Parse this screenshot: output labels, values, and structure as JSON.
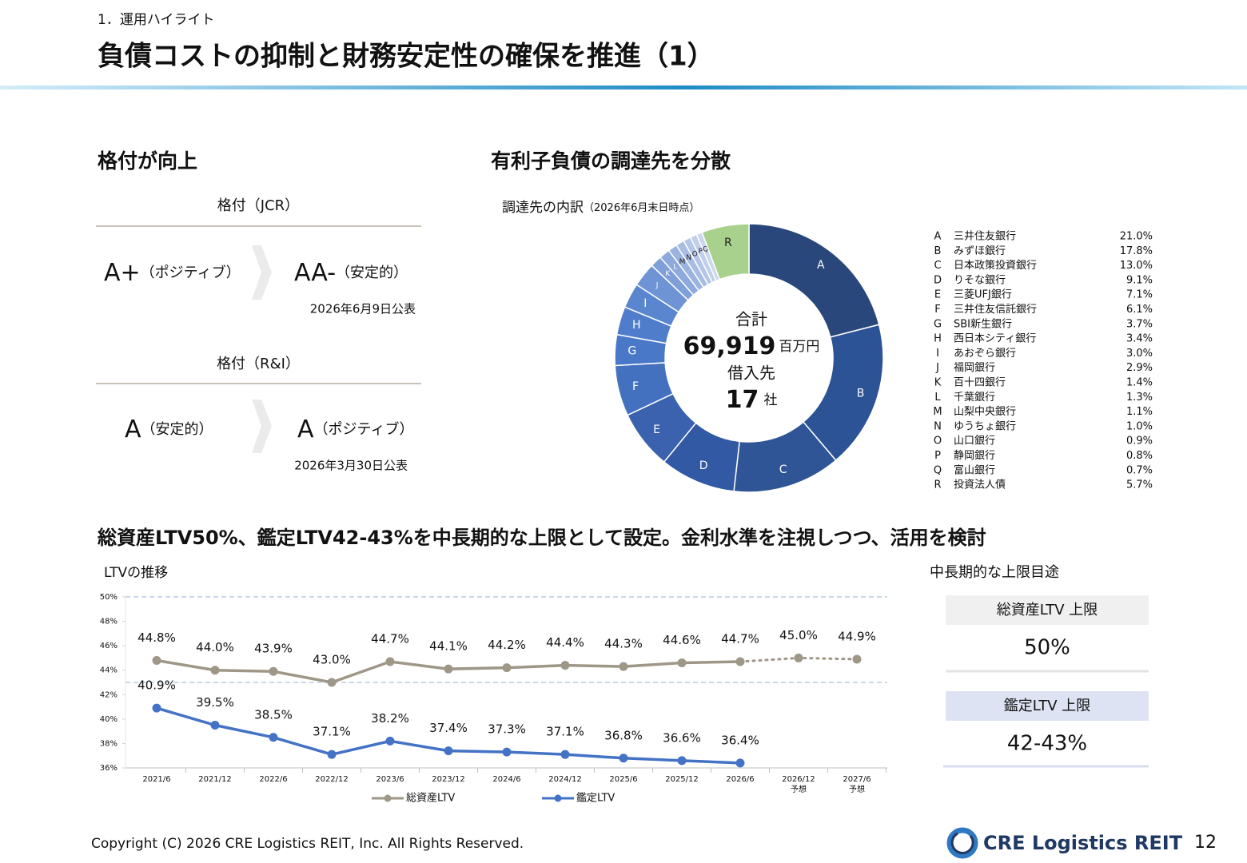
{
  "header": {
    "section": "1．運用ハイライト",
    "title": "負債コストの抑制と財務安定性の確保を推進（1）"
  },
  "rating": {
    "heading": "格付が向上",
    "agencies": [
      {
        "label": "格付（JCR）",
        "before": "A+",
        "before_note": "（ポジティブ）",
        "after": "AA-",
        "after_note": "（安定的）",
        "date": "2026年6月9日公表"
      },
      {
        "label": "格付（R&I）",
        "before": "A",
        "before_note": "（安定的）",
        "after": "A",
        "after_note": "（ポジティブ）",
        "date": "2026年3月30日公表"
      }
    ]
  },
  "chart_data": [
    {
      "type": "donut",
      "heading": "有利子負債の調達先を分散",
      "title": "調達先の内訳",
      "subtitle": "（2026年6月末日時点）",
      "center": {
        "total_label": "合計",
        "total": "69,919",
        "total_unit": "百万円",
        "count_label": "借入先",
        "count": 17,
        "count_unit": "社"
      },
      "categories": [
        "A",
        "B",
        "C",
        "D",
        "E",
        "F",
        "G",
        "H",
        "I",
        "J",
        "K",
        "L",
        "M",
        "N",
        "O",
        "P",
        "Q",
        "R"
      ],
      "names": [
        "三井住友銀行",
        "みずほ銀行",
        "日本政策投資銀行",
        "りそな銀行",
        "三菱UFJ銀行",
        "三井住友信託銀行",
        "SBI新生銀行",
        "西日本シティ銀行",
        "あおぞら銀行",
        "福岡銀行",
        "百十四銀行",
        "千葉銀行",
        "山梨中央銀行",
        "ゆうちょ銀行",
        "山口銀行",
        "静岡銀行",
        "富山銀行",
        "投資法人債"
      ],
      "values": [
        21.0,
        17.8,
        13.0,
        9.1,
        7.1,
        6.1,
        3.7,
        3.4,
        3.0,
        2.9,
        1.4,
        1.3,
        1.1,
        1.0,
        0.9,
        0.8,
        0.7,
        5.7
      ],
      "value_labels": [
        "21.0%",
        "17.8%",
        "13.0%",
        "9.1%",
        "7.1%",
        "6.1%",
        "3.7%",
        "3.4%",
        "3.0%",
        "2.9%",
        "1.4%",
        "1.3%",
        "1.1%",
        "1.0%",
        "0.9%",
        "0.8%",
        "0.7%",
        "5.7%"
      ],
      "colors": [
        "#29477a",
        "#2c5395",
        "#2f5597",
        "#3259a3",
        "#3a62ae",
        "#4470c0",
        "#4a78c8",
        "#4f7dcc",
        "#5a86d0",
        "#6f94d5",
        "#7f9fd8",
        "#8ea9dc",
        "#9bb3e0",
        "#a8bde4",
        "#b4c6e7",
        "#c1cfea",
        "#ccd7ee",
        "#a9d18e"
      ]
    },
    {
      "type": "line",
      "heading": "総資産LTV50%、鑑定LTV42-43%を中長期的な上限として設定。金利水準を注視しつつ、活用を検討",
      "title": "LTVの推移",
      "categories": [
        "2021/6",
        "2021/12",
        "2022/6",
        "2022/12",
        "2023/6",
        "2023/12",
        "2024/6",
        "2024/12",
        "2025/6",
        "2025/12",
        "2026/6",
        "2026/12",
        "2027/6"
      ],
      "category_notes": [
        null,
        null,
        null,
        null,
        null,
        null,
        null,
        null,
        null,
        null,
        null,
        "予想",
        "予想"
      ],
      "series": [
        {
          "name": "総資産LTV",
          "color": "#9e9687",
          "values": [
            44.8,
            44.0,
            43.9,
            43.0,
            44.7,
            44.1,
            44.2,
            44.4,
            44.3,
            44.6,
            44.7,
            45.0,
            44.9
          ],
          "value_labels": [
            "44.8%",
            "44.0%",
            "43.9%",
            "43.0%",
            "44.7%",
            "44.1%",
            "44.2%",
            "44.4%",
            "44.3%",
            "44.6%",
            "44.7%",
            "45.0%",
            "44.9%"
          ]
        },
        {
          "name": "鑑定LTV",
          "color": "#4472c4",
          "values": [
            40.9,
            39.5,
            38.5,
            37.1,
            38.2,
            37.4,
            37.3,
            37.1,
            36.8,
            36.6,
            36.4,
            null,
            null
          ],
          "value_labels": [
            "40.9%",
            "39.5%",
            "38.5%",
            "37.1%",
            "38.2%",
            "37.4%",
            "37.3%",
            "37.1%",
            "36.8%",
            "36.6%",
            "36.4%",
            null,
            null
          ]
        }
      ],
      "ylim": [
        36,
        50
      ],
      "yticks": [
        {
          "value": 36,
          "label": "36%"
        },
        {
          "value": 38,
          "label": "38%"
        },
        {
          "value": 40,
          "label": "40%"
        },
        {
          "value": 42,
          "label": "42%"
        },
        {
          "value": 44,
          "label": "44%"
        },
        {
          "value": 46,
          "label": "46%"
        },
        {
          "value": 48,
          "label": "48%"
        },
        {
          "value": 50,
          "label": "50%"
        }
      ],
      "reference_lines": [
        50,
        43
      ]
    }
  ],
  "limits": {
    "title": "中長期的な上限目途",
    "items": [
      {
        "label": "総資産LTV 上限",
        "value": "50%"
      },
      {
        "label": "鑑定LTV 上限",
        "value": "42-43%"
      }
    ]
  },
  "footer": {
    "copyright": "Copyright (C) 2026 CRE Logistics REIT, Inc. All Rights Reserved.",
    "logo": "CRE Logistics REIT",
    "page": 12
  }
}
